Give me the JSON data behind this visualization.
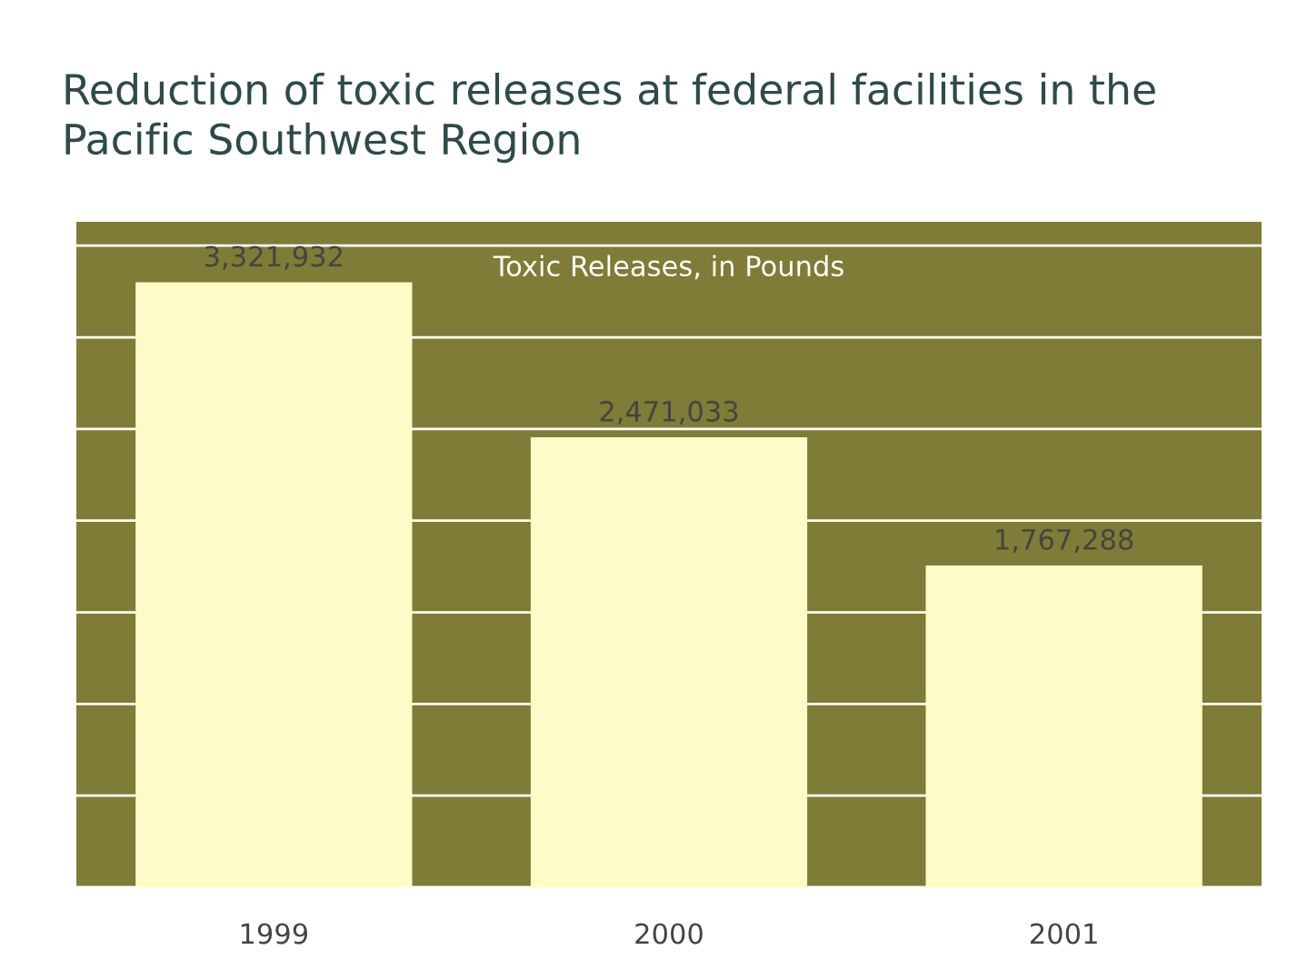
{
  "chart_data": {
    "type": "bar",
    "title": "Reduction of toxic releases at federal facilities in the\nPacific Southwest Region",
    "categories": [
      "1999",
      "2000",
      "2001"
    ],
    "values": [
      3321932,
      2471033,
      1767288
    ],
    "color": "#fdfcc8",
    "value_labels": [
      "3,321,932",
      "2,471,033",
      "1,767,288"
    ],
    "annotations": [
      "Toxic Releases, in Pounds"
    ],
    "grid": "y",
    "tick_labels": "x",
    "legend": false
  }
}
